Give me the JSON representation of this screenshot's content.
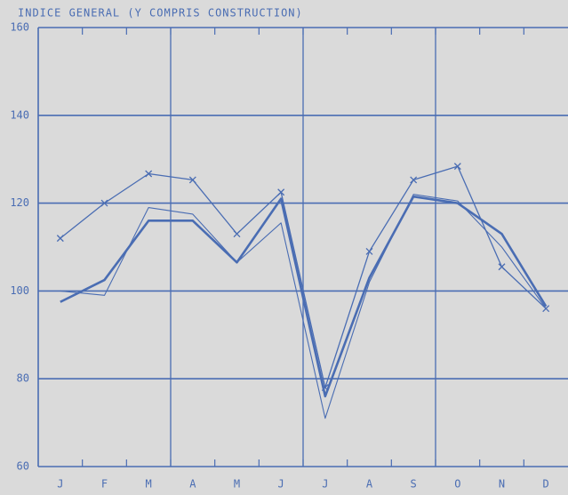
{
  "chart_data": {
    "type": "line",
    "title": "INDICE GENERAL (Y COMPRIS CONSTRUCTION)",
    "categories": [
      "J",
      "F",
      "M",
      "A",
      "M",
      "J",
      "J",
      "A",
      "S",
      "O",
      "N",
      "D"
    ],
    "series": [
      {
        "color": "#4a6db3",
        "marker": "x",
        "width": 1.3,
        "values": [
          112,
          120,
          126.7,
          125.3,
          113,
          122.5,
          78,
          109,
          125.3,
          128.4,
          105.5,
          96
        ]
      },
      {
        "color": "#4a6db3",
        "width": 2.6,
        "values": [
          97.5,
          102.5,
          116,
          116,
          106.5,
          121,
          76,
          103,
          121.5,
          120,
          113,
          96.5
        ]
      },
      {
        "color": "#4a6db3",
        "width": 1.1,
        "values": [
          100,
          99,
          119,
          117.5,
          106.5,
          115.5,
          71,
          102,
          122,
          120.5,
          110,
          96
        ]
      }
    ],
    "ylim": [
      60,
      160
    ],
    "yticks": [
      60,
      80,
      100,
      120,
      140,
      160
    ],
    "grid": true
  }
}
